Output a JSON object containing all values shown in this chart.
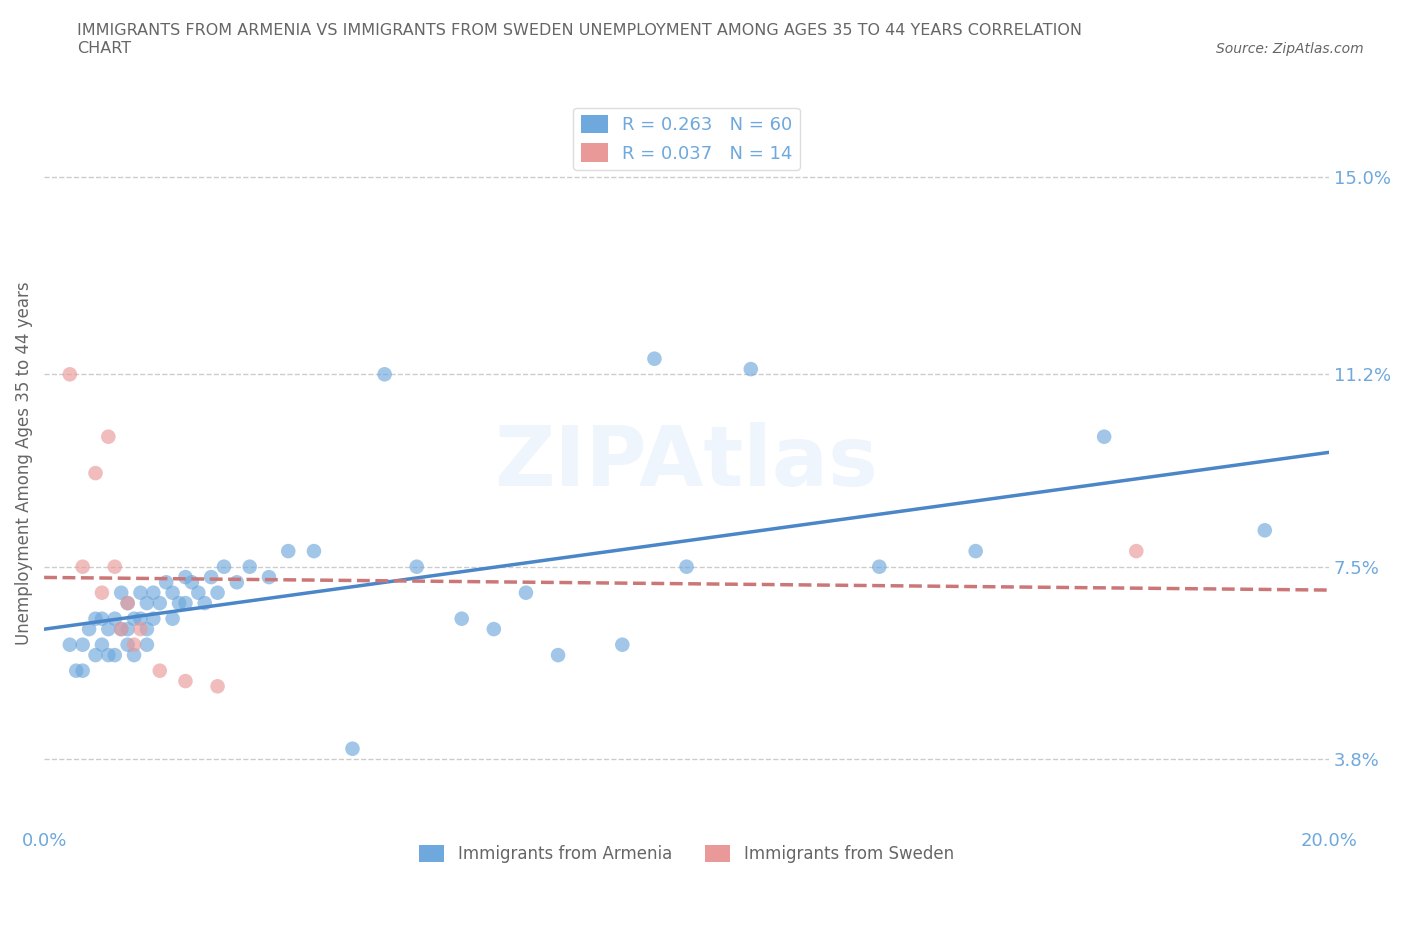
{
  "title": "IMMIGRANTS FROM ARMENIA VS IMMIGRANTS FROM SWEDEN UNEMPLOYMENT AMONG AGES 35 TO 44 YEARS CORRELATION\nCHART",
  "source_text": "Source: ZipAtlas.com",
  "ylabel": "Unemployment Among Ages 35 to 44 years",
  "xlim": [
    0.0,
    0.2
  ],
  "ylim": [
    0.025,
    0.165
  ],
  "ytick_values": [
    0.038,
    0.075,
    0.112,
    0.15
  ],
  "ytick_labels": [
    "3.8%",
    "7.5%",
    "11.2%",
    "15.0%"
  ],
  "hlines": [
    0.038,
    0.075,
    0.112,
    0.15
  ],
  "armenia_color": "#6fa8dc",
  "sweden_color": "#ea9999",
  "armenia_label": "Immigrants from Armenia",
  "sweden_label": "Immigrants from Sweden",
  "R_armenia": 0.263,
  "N_armenia": 60,
  "R_sweden": 0.037,
  "N_sweden": 14,
  "armenia_x": [
    0.004,
    0.005,
    0.006,
    0.006,
    0.007,
    0.008,
    0.008,
    0.009,
    0.009,
    0.01,
    0.01,
    0.011,
    0.011,
    0.012,
    0.012,
    0.013,
    0.013,
    0.013,
    0.014,
    0.014,
    0.015,
    0.015,
    0.016,
    0.016,
    0.016,
    0.017,
    0.017,
    0.018,
    0.019,
    0.02,
    0.02,
    0.021,
    0.022,
    0.022,
    0.023,
    0.024,
    0.025,
    0.026,
    0.027,
    0.028,
    0.03,
    0.032,
    0.035,
    0.038,
    0.042,
    0.048,
    0.053,
    0.058,
    0.065,
    0.07,
    0.075,
    0.08,
    0.09,
    0.095,
    0.1,
    0.11,
    0.13,
    0.145,
    0.165,
    0.19
  ],
  "armenia_y": [
    0.06,
    0.055,
    0.055,
    0.06,
    0.063,
    0.058,
    0.065,
    0.06,
    0.065,
    0.058,
    0.063,
    0.058,
    0.065,
    0.063,
    0.07,
    0.06,
    0.063,
    0.068,
    0.058,
    0.065,
    0.065,
    0.07,
    0.06,
    0.063,
    0.068,
    0.065,
    0.07,
    0.068,
    0.072,
    0.065,
    0.07,
    0.068,
    0.073,
    0.068,
    0.072,
    0.07,
    0.068,
    0.073,
    0.07,
    0.075,
    0.072,
    0.075,
    0.073,
    0.078,
    0.078,
    0.04,
    0.112,
    0.075,
    0.065,
    0.063,
    0.07,
    0.058,
    0.06,
    0.115,
    0.075,
    0.113,
    0.075,
    0.078,
    0.1,
    0.082
  ],
  "sweden_x": [
    0.004,
    0.006,
    0.008,
    0.009,
    0.01,
    0.011,
    0.012,
    0.013,
    0.014,
    0.015,
    0.018,
    0.022,
    0.027,
    0.17
  ],
  "sweden_y": [
    0.112,
    0.075,
    0.093,
    0.07,
    0.1,
    0.075,
    0.063,
    0.068,
    0.06,
    0.063,
    0.055,
    0.053,
    0.052,
    0.078
  ],
  "background_color": "#ffffff",
  "grid_color": "#cccccc",
  "title_color": "#666666",
  "axis_label_color": "#666666",
  "tick_label_color": "#6fa8dc",
  "trend_armenia_color": "#4a86c8",
  "trend_sweden_color": "#cc7777"
}
